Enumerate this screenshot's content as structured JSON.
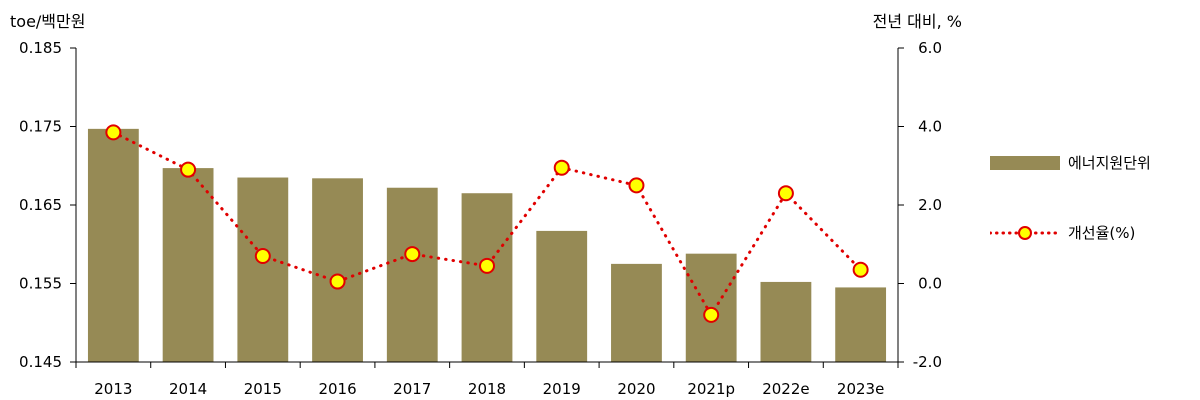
{
  "chart_data": {
    "type": "bar",
    "categories": [
      "2013",
      "2014",
      "2015",
      "2016",
      "2017",
      "2018",
      "2019",
      "2020",
      "2021p",
      "2022e",
      "2023e"
    ],
    "series": [
      {
        "name": "에너지원단위",
        "type": "bar",
        "axis": "left",
        "color": "#968a55",
        "values": [
          0.1747,
          0.1697,
          0.1685,
          0.1684,
          0.1672,
          0.1665,
          0.1617,
          0.1575,
          0.1588,
          0.1552,
          0.1545
        ]
      },
      {
        "name": "개선율(%)",
        "type": "line",
        "axis": "right",
        "color": "#e00000",
        "marker_fill": "#ffff00",
        "values": [
          3.85,
          2.9,
          0.7,
          0.05,
          0.75,
          0.45,
          2.95,
          2.5,
          -0.8,
          2.3,
          0.35
        ]
      }
    ],
    "left_axis": {
      "label": "toe/백만원",
      "ylim": [
        0.145,
        0.185
      ],
      "ticks": [
        "0.145",
        "0.155",
        "0.165",
        "0.175",
        "0.185"
      ]
    },
    "right_axis": {
      "label": "전년 대비, %",
      "ylim": [
        -2.0,
        6.0
      ],
      "ticks": [
        "-2.0",
        "0.0",
        "2.0",
        "4.0",
        "6.0"
      ]
    },
    "legend_position": "right"
  }
}
